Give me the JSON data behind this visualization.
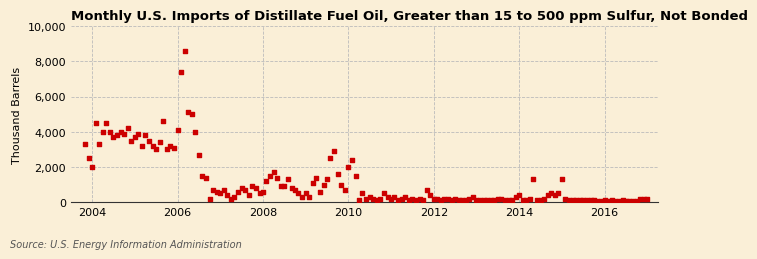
{
  "title": "Monthly U.S. Imports of Distillate Fuel Oil, Greater than 15 to 500 ppm Sulfur, Not Bonded",
  "ylabel": "Thousand Barrels",
  "source": "Source: U.S. Energy Information Administration",
  "background_color": "#faefd7",
  "marker_color": "#cc0000",
  "ylim": [
    0,
    10000
  ],
  "yticks": [
    0,
    2000,
    4000,
    6000,
    8000,
    10000
  ],
  "xlim_start": 2003.5,
  "xlim_end": 2017.25,
  "xtick_positions": [
    2004,
    2006,
    2008,
    2010,
    2012,
    2014,
    2016
  ],
  "dates": [
    2003.83,
    2003.92,
    2004.0,
    2004.08,
    2004.17,
    2004.25,
    2004.33,
    2004.42,
    2004.5,
    2004.58,
    2004.67,
    2004.75,
    2004.83,
    2004.92,
    2005.0,
    2005.08,
    2005.17,
    2005.25,
    2005.33,
    2005.42,
    2005.5,
    2005.58,
    2005.67,
    2005.75,
    2005.83,
    2005.92,
    2006.0,
    2006.08,
    2006.17,
    2006.25,
    2006.33,
    2006.42,
    2006.5,
    2006.58,
    2006.67,
    2006.75,
    2006.83,
    2006.92,
    2007.0,
    2007.08,
    2007.17,
    2007.25,
    2007.33,
    2007.42,
    2007.5,
    2007.58,
    2007.67,
    2007.75,
    2007.83,
    2007.92,
    2008.0,
    2008.08,
    2008.17,
    2008.25,
    2008.33,
    2008.42,
    2008.5,
    2008.58,
    2008.67,
    2008.75,
    2008.83,
    2008.92,
    2009.0,
    2009.08,
    2009.17,
    2009.25,
    2009.33,
    2009.42,
    2009.5,
    2009.58,
    2009.67,
    2009.75,
    2009.83,
    2009.92,
    2010.0,
    2010.08,
    2010.17,
    2010.25,
    2010.33,
    2010.42,
    2010.5,
    2010.58,
    2010.67,
    2010.75,
    2010.83,
    2010.92,
    2011.0,
    2011.08,
    2011.17,
    2011.25,
    2011.33,
    2011.42,
    2011.5,
    2011.58,
    2011.67,
    2011.75,
    2011.83,
    2011.92,
    2012.0,
    2012.08,
    2012.17,
    2012.25,
    2012.33,
    2012.42,
    2012.5,
    2012.58,
    2012.67,
    2012.75,
    2012.83,
    2012.92,
    2013.0,
    2013.08,
    2013.17,
    2013.25,
    2013.33,
    2013.42,
    2013.5,
    2013.58,
    2013.67,
    2013.75,
    2013.83,
    2013.92,
    2014.0,
    2014.08,
    2014.17,
    2014.25,
    2014.33,
    2014.42,
    2014.5,
    2014.58,
    2014.67,
    2014.75,
    2014.83,
    2014.92,
    2015.0,
    2015.08,
    2015.17,
    2015.25,
    2015.33,
    2015.42,
    2015.5,
    2015.58,
    2015.67,
    2015.75,
    2015.83,
    2015.92,
    2016.0,
    2016.08,
    2016.17,
    2016.25,
    2016.33,
    2016.42,
    2016.5,
    2016.58,
    2016.67,
    2016.75,
    2016.83,
    2016.92,
    2017.0
  ],
  "values": [
    3300,
    2500,
    2000,
    4500,
    3300,
    4000,
    4500,
    4000,
    3700,
    3800,
    4000,
    3900,
    4200,
    3500,
    3700,
    3900,
    3200,
    3800,
    3500,
    3200,
    3000,
    3400,
    4600,
    3000,
    3200,
    3100,
    4100,
    7400,
    8600,
    5100,
    5000,
    4000,
    2700,
    1500,
    1400,
    200,
    700,
    600,
    500,
    700,
    400,
    200,
    300,
    600,
    800,
    700,
    400,
    900,
    800,
    500,
    600,
    1200,
    1500,
    1700,
    1400,
    900,
    900,
    1300,
    800,
    700,
    500,
    300,
    500,
    300,
    1100,
    1400,
    600,
    1000,
    1300,
    2500,
    2900,
    1600,
    1000,
    700,
    2000,
    2400,
    1500,
    100,
    500,
    200,
    300,
    200,
    100,
    200,
    500,
    300,
    200,
    300,
    100,
    200,
    300,
    100,
    200,
    100,
    200,
    100,
    700,
    400,
    200,
    200,
    100,
    200,
    200,
    100,
    200,
    100,
    100,
    100,
    200,
    300,
    100,
    100,
    100,
    100,
    100,
    100,
    200,
    200,
    100,
    100,
    100,
    300,
    400,
    100,
    100,
    200,
    1300,
    100,
    100,
    200,
    400,
    500,
    400,
    500,
    1300,
    200,
    100,
    100,
    100,
    100,
    100,
    100,
    100,
    100,
    50,
    50,
    100,
    50,
    100,
    50,
    50,
    100,
    50,
    50,
    50,
    50,
    200,
    200,
    200
  ]
}
